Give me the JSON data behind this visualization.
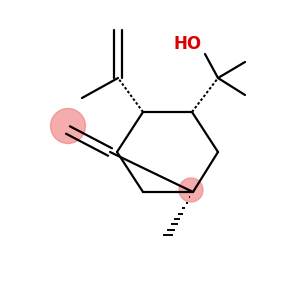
{
  "bg_color": "#ffffff",
  "ring_color": "#000000",
  "ho_color": "#dd0000",
  "highlight_color": "#f08080",
  "highlight_alpha": 0.65,
  "figsize": [
    3.0,
    3.0
  ],
  "dpi": 100,
  "lw": 1.6
}
